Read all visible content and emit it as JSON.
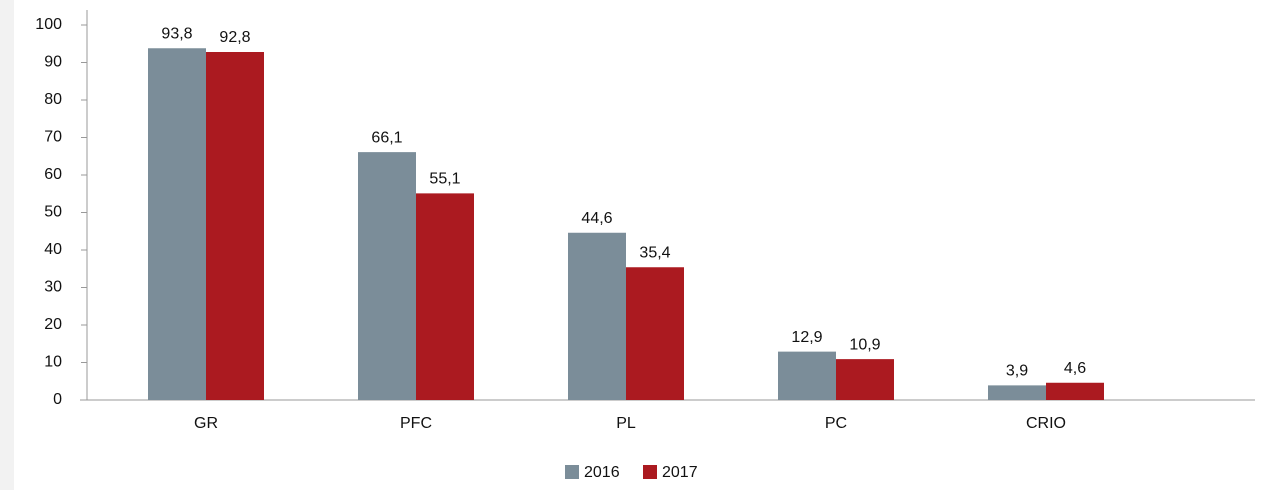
{
  "chart_data": {
    "type": "bar",
    "categories": [
      "GR",
      "PFC",
      "PL",
      "PC",
      "CRIO"
    ],
    "series": [
      {
        "name": "2016",
        "color": "#7b8d99",
        "values": [
          93.8,
          66.1,
          44.6,
          12.9,
          3.9
        ],
        "value_labels": [
          "93,8",
          "66,1",
          "44,6",
          "12,9",
          "3,9"
        ]
      },
      {
        "name": "2017",
        "color": "#ab1a20",
        "values": [
          92.8,
          55.1,
          35.4,
          10.9,
          4.6
        ],
        "value_labels": [
          "92,8",
          "55,1",
          "35,4",
          "10,9",
          "4,6"
        ]
      }
    ],
    "ylim": [
      0,
      100
    ],
    "yticks": [
      0,
      10,
      20,
      30,
      40,
      50,
      60,
      70,
      80,
      90,
      100
    ],
    "legend": "bottom"
  }
}
